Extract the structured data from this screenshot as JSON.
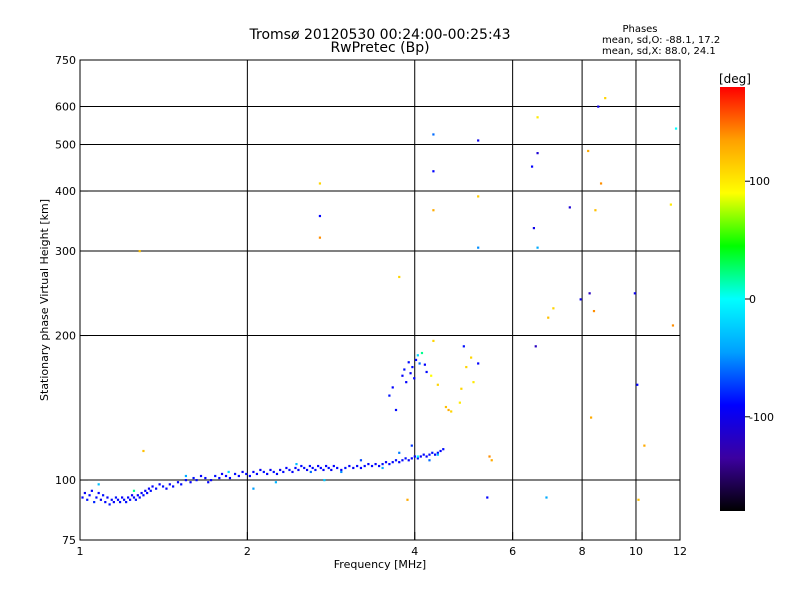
{
  "chart_data": {
    "type": "scatter",
    "title": "Tromsø 20120530 00:24:00-00:25:43",
    "subtitle": "RwPretec (Bp)",
    "xlabel": "Frequency [MHz]",
    "ylabel": "Stationary phase Virtual Height [km]",
    "x_scale": "log",
    "y_scale": "log",
    "xlim": [
      1,
      12
    ],
    "ylim": [
      75,
      750
    ],
    "x_ticks": [
      1,
      2,
      4,
      6,
      8,
      10,
      12
    ],
    "x_tick_labels": [
      "1",
      "2",
      "4",
      "6",
      "8",
      "10",
      "12"
    ],
    "y_ticks": [
      75,
      100,
      200,
      300,
      400,
      500,
      600,
      750
    ],
    "y_tick_labels": [
      "75",
      "100",
      "200",
      "300",
      "400",
      "500",
      "600",
      "750"
    ],
    "grid": true,
    "phase_stats": {
      "title": "Phases",
      "line_o": "mean, sd,O: -88.1, 17.2",
      "line_x": "mean, sd,X: 88.0, 24.1"
    },
    "colorbar": {
      "label": "[deg]",
      "range": [
        -180,
        180
      ],
      "ticks": [
        100,
        0,
        -100
      ],
      "tick_labels": [
        "100",
        "0",
        "-100"
      ],
      "colors": [
        "#000000",
        "#3c00a0",
        "#0000ff",
        "#00a0ff",
        "#00ffff",
        "#00ff00",
        "#ffff00",
        "#ffa000",
        "#ff0000"
      ]
    },
    "points": [
      [
        1.01,
        92,
        -90
      ],
      [
        1.02,
        94,
        -95
      ],
      [
        1.03,
        91,
        -85
      ],
      [
        1.04,
        93,
        -88
      ],
      [
        1.05,
        95,
        -92
      ],
      [
        1.06,
        90,
        -80
      ],
      [
        1.07,
        92,
        -87
      ],
      [
        1.08,
        94,
        -90
      ],
      [
        1.09,
        91,
        -93
      ],
      [
        1.1,
        93,
        -86
      ],
      [
        1.11,
        90,
        -89
      ],
      [
        1.12,
        92,
        -91
      ],
      [
        1.13,
        89,
        -84
      ],
      [
        1.14,
        91,
        -88
      ],
      [
        1.15,
        90,
        -92
      ],
      [
        1.16,
        92,
        -85
      ],
      [
        1.17,
        91,
        -90
      ],
      [
        1.18,
        90,
        -87
      ],
      [
        1.19,
        92,
        -93
      ],
      [
        1.2,
        91,
        -88
      ],
      [
        1.21,
        90,
        -86
      ],
      [
        1.22,
        92,
        -90
      ],
      [
        1.23,
        91,
        -89
      ],
      [
        1.24,
        93,
        -94
      ],
      [
        1.25,
        92,
        -87
      ],
      [
        1.26,
        91,
        -85
      ],
      [
        1.27,
        93,
        -92
      ],
      [
        1.28,
        92,
        -88
      ],
      [
        1.29,
        94,
        -90
      ],
      [
        1.3,
        93,
        -86
      ],
      [
        1.31,
        95,
        -91
      ],
      [
        1.32,
        94,
        -89
      ],
      [
        1.33,
        96,
        -93
      ],
      [
        1.34,
        95,
        -87
      ],
      [
        1.35,
        97,
        -90
      ],
      [
        1.37,
        96,
        -88
      ],
      [
        1.39,
        98,
        -92
      ],
      [
        1.41,
        97,
        -86
      ],
      [
        1.43,
        96,
        -90
      ],
      [
        1.45,
        98,
        -94
      ],
      [
        1.47,
        97,
        -88
      ],
      [
        1.5,
        99,
        -91
      ],
      [
        1.52,
        98,
        -87
      ],
      [
        1.55,
        100,
        -90
      ],
      [
        1.58,
        99,
        -93
      ],
      [
        1.6,
        101,
        -86
      ],
      [
        1.62,
        100,
        -89
      ],
      [
        1.65,
        102,
        -92
      ],
      [
        1.68,
        101,
        -88
      ],
      [
        1.7,
        99,
        -90
      ],
      [
        1.72,
        100,
        -94
      ],
      [
        1.75,
        102,
        -87
      ],
      [
        1.78,
        101,
        -90
      ],
      [
        1.8,
        103,
        -91
      ],
      [
        1.83,
        102,
        -88
      ],
      [
        1.86,
        101,
        -93
      ],
      [
        1.9,
        103,
        -86
      ],
      [
        1.93,
        102,
        -90
      ],
      [
        1.96,
        104,
        -92
      ],
      [
        1.99,
        103,
        -87
      ],
      [
        2.02,
        102,
        -89
      ],
      [
        2.05,
        104,
        -91
      ],
      [
        2.08,
        103,
        -88
      ],
      [
        2.11,
        105,
        -93
      ],
      [
        2.14,
        104,
        -86
      ],
      [
        2.17,
        103,
        -90
      ],
      [
        2.2,
        105,
        -92
      ],
      [
        2.23,
        104,
        -87
      ],
      [
        2.26,
        103,
        -89
      ],
      [
        2.29,
        105,
        -95
      ],
      [
        2.32,
        104,
        -88
      ],
      [
        2.35,
        106,
        -90
      ],
      [
        2.38,
        105,
        -86
      ],
      [
        2.41,
        104,
        -92
      ],
      [
        2.44,
        106,
        -88
      ],
      [
        2.47,
        105,
        -91
      ],
      [
        2.5,
        107,
        -89
      ],
      [
        2.53,
        106,
        -87
      ],
      [
        2.56,
        105,
        -93
      ],
      [
        2.59,
        107,
        -88
      ],
      [
        2.62,
        106,
        -90
      ],
      [
        2.65,
        105,
        -86
      ],
      [
        2.68,
        107,
        -92
      ],
      [
        2.71,
        106,
        -88
      ],
      [
        2.74,
        105,
        -91
      ],
      [
        2.77,
        107,
        -89
      ],
      [
        2.8,
        106,
        -87
      ],
      [
        2.83,
        105,
        -93
      ],
      [
        2.86,
        107,
        -90
      ],
      [
        2.9,
        106,
        -88
      ],
      [
        2.95,
        105,
        -92
      ],
      [
        3.0,
        106,
        -86
      ],
      [
        3.05,
        107,
        -90
      ],
      [
        3.1,
        106,
        -94
      ],
      [
        3.15,
        107,
        -88
      ],
      [
        3.2,
        106,
        -90
      ],
      [
        3.25,
        107,
        -87
      ],
      [
        3.3,
        108,
        -92
      ],
      [
        3.35,
        107,
        -88
      ],
      [
        3.4,
        108,
        -91
      ],
      [
        3.45,
        107,
        -89
      ],
      [
        3.5,
        108,
        -86
      ],
      [
        3.55,
        109,
        -93
      ],
      [
        3.6,
        108,
        -88
      ],
      [
        3.65,
        109,
        -90
      ],
      [
        3.7,
        110,
        -87
      ],
      [
        3.75,
        109,
        -91
      ],
      [
        3.8,
        110,
        -89
      ],
      [
        3.85,
        111,
        -86
      ],
      [
        3.9,
        110,
        -92
      ],
      [
        3.95,
        111,
        -88
      ],
      [
        4.0,
        112,
        -90
      ],
      [
        4.05,
        111,
        -87
      ],
      [
        4.1,
        112,
        -93
      ],
      [
        4.15,
        113,
        -88
      ],
      [
        4.2,
        112,
        -91
      ],
      [
        4.25,
        113,
        -89
      ],
      [
        4.3,
        114,
        -86
      ],
      [
        4.35,
        113,
        -92
      ],
      [
        4.4,
        114,
        -88
      ],
      [
        4.45,
        115,
        -90
      ],
      [
        4.5,
        116,
        -87
      ],
      [
        1.08,
        98,
        -30
      ],
      [
        1.25,
        95,
        20
      ],
      [
        1.55,
        102,
        -40
      ],
      [
        1.85,
        104,
        -20
      ],
      [
        2.05,
        96,
        -45
      ],
      [
        2.25,
        99,
        -35
      ],
      [
        2.45,
        108,
        -30
      ],
      [
        2.6,
        104,
        -60
      ],
      [
        2.75,
        100,
        -25
      ],
      [
        2.95,
        104,
        -50
      ],
      [
        3.2,
        110,
        -70
      ],
      [
        3.5,
        106,
        -40
      ],
      [
        3.75,
        114,
        -55
      ],
      [
        3.95,
        118,
        -75
      ],
      [
        4.05,
        112,
        0
      ],
      [
        4.25,
        110,
        -60
      ],
      [
        4.4,
        113,
        -35
      ],
      [
        3.6,
        150,
        -85
      ],
      [
        3.65,
        156,
        -90
      ],
      [
        3.7,
        140,
        -88
      ],
      [
        3.8,
        165,
        -92
      ],
      [
        3.83,
        170,
        -86
      ],
      [
        3.86,
        160,
        -90
      ],
      [
        3.9,
        176,
        -88
      ],
      [
        3.93,
        167,
        -94
      ],
      [
        3.96,
        172,
        -87
      ],
      [
        3.99,
        163,
        -90
      ],
      [
        4.02,
        178,
        -89
      ],
      [
        4.05,
        182,
        -20
      ],
      [
        4.08,
        175,
        -60
      ],
      [
        4.12,
        184,
        20
      ],
      [
        4.17,
        174,
        -91
      ],
      [
        4.2,
        168,
        -88
      ],
      [
        4.28,
        165,
        90
      ],
      [
        4.32,
        195,
        110
      ],
      [
        4.4,
        158,
        110
      ],
      [
        4.55,
        142,
        120
      ],
      [
        4.6,
        140,
        130
      ],
      [
        4.65,
        139,
        110
      ],
      [
        4.82,
        145,
        100
      ],
      [
        4.85,
        155,
        110
      ],
      [
        4.9,
        190,
        -86
      ],
      [
        4.95,
        172,
        110
      ],
      [
        5.05,
        180,
        110
      ],
      [
        5.1,
        160,
        100
      ],
      [
        5.2,
        175,
        -90
      ],
      [
        5.45,
        112,
        140
      ],
      [
        5.5,
        110,
        130
      ],
      [
        1.3,
        115,
        120
      ],
      [
        1.28,
        300,
        120
      ],
      [
        2.7,
        415,
        110
      ],
      [
        2.7,
        320,
        140
      ],
      [
        2.7,
        355,
        -90
      ],
      [
        3.75,
        265,
        110
      ],
      [
        3.88,
        91,
        130
      ],
      [
        4.32,
        525,
        -60
      ],
      [
        4.32,
        440,
        -90
      ],
      [
        4.32,
        365,
        130
      ],
      [
        5.2,
        510,
        -100
      ],
      [
        5.2,
        390,
        115
      ],
      [
        5.2,
        305,
        -50
      ],
      [
        5.4,
        92,
        -90
      ],
      [
        6.5,
        450,
        -90
      ],
      [
        6.65,
        570,
        100
      ],
      [
        6.65,
        480,
        -110
      ],
      [
        6.55,
        335,
        -100
      ],
      [
        6.65,
        305,
        -40
      ],
      [
        6.6,
        190,
        -120
      ],
      [
        6.9,
        92,
        -40
      ],
      [
        6.95,
        218,
        120
      ],
      [
        7.1,
        228,
        110
      ],
      [
        7.6,
        370,
        -110
      ],
      [
        7.95,
        238,
        -100
      ],
      [
        8.2,
        485,
        130
      ],
      [
        8.25,
        245,
        -120
      ],
      [
        8.3,
        135,
        130
      ],
      [
        8.4,
        225,
        140
      ],
      [
        8.45,
        365,
        120
      ],
      [
        8.55,
        600,
        -100
      ],
      [
        8.65,
        415,
        140
      ],
      [
        8.8,
        625,
        110
      ],
      [
        9.95,
        245,
        -100
      ],
      [
        10.05,
        158,
        -90
      ],
      [
        10.1,
        91,
        120
      ],
      [
        10.35,
        118,
        130
      ],
      [
        11.55,
        375,
        100
      ],
      [
        11.65,
        210,
        140
      ],
      [
        11.8,
        540,
        0
      ]
    ]
  }
}
